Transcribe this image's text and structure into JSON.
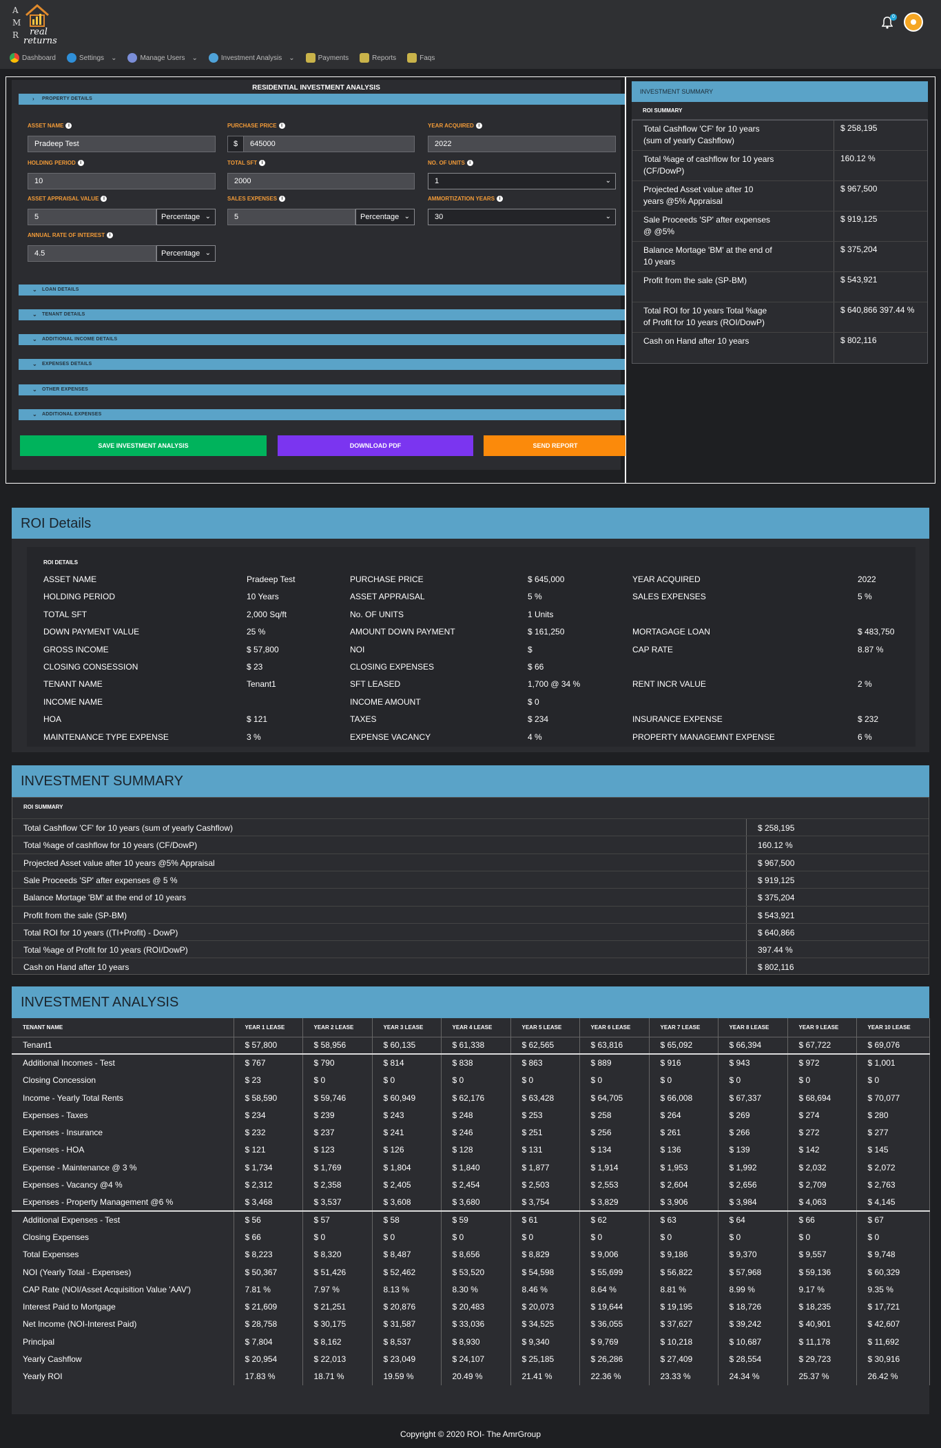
{
  "app": {
    "logo_letters": [
      "A",
      "M",
      "R"
    ],
    "logo_text": "real returns",
    "notification_count": "0"
  },
  "nav": [
    {
      "label": "Dashboard",
      "icon": "dashboard-icon",
      "has_caret": false
    },
    {
      "label": "Settings",
      "icon": "gear-icon",
      "has_caret": true
    },
    {
      "label": "Manage Users",
      "icon": "users-icon",
      "has_caret": true
    },
    {
      "label": "Investment Analysis",
      "icon": "analysis-icon",
      "has_caret": true
    },
    {
      "label": "Payments",
      "icon": "payments-icon",
      "has_caret": false
    },
    {
      "label": "Reports",
      "icon": "reports-icon",
      "has_caret": false
    },
    {
      "label": "Faqs",
      "icon": "faqs-icon",
      "has_caret": false
    }
  ],
  "form": {
    "title": "RESIDENTIAL INVESTMENT ANALYSIS",
    "property_details": "PROPERTY DETAILS",
    "asset_name_label": "ASSET NAME",
    "asset_name": "Pradeep Test",
    "purchase_price_label": "PURCHASE PRICE",
    "currency": "$",
    "purchase_price": "645000",
    "year_acquired_label": "YEAR ACQUIRED",
    "year_acquired": "2022",
    "holding_period_label": "HOLDING PERIOD",
    "holding_period": "10",
    "total_sft_label": "TOTAL SFT",
    "total_sft": "2000",
    "units_label": "NO. OF UNITS",
    "units": "1",
    "appraisal_label": "ASSET APPRAISAL VALUE",
    "appraisal": "5",
    "appraisal_type": "Percentage",
    "sales_exp_label": "SALES EXPENSES",
    "sales_exp": "5",
    "sales_exp_type": "Percentage",
    "amort_label": "AMMORTIZATION YEARS",
    "amort": "30",
    "rate_label": "ANNUAL RATE OF INTEREST",
    "rate": "4.5",
    "rate_type": "Percentage",
    "sections": [
      "LOAN DETAILS",
      "TENANT DETAILS",
      "ADDITIONAL INCOME DETAILS",
      "EXPENSES DETAILS",
      "OTHER EXPENSES",
      "ADDITIONAL EXPENSES"
    ],
    "save_btn": "SAVE INVESTMENT ANALYSIS",
    "pdf_btn": "DOWNLOAD PDF",
    "send_btn": "SEND REPORT",
    "colors": {
      "save": "#00b35c",
      "pdf": "#7b35f0",
      "send": "#fb8a0b"
    }
  },
  "side_summary": {
    "title": "INVESTMENT SUMMARY",
    "subtitle": "ROI SUMMARY",
    "rows": [
      {
        "k": "Total Cashflow 'CF' for 10 years (sum of yearly Cashflow)",
        "v": "$ 258,195"
      },
      {
        "k": "Total %age of cashflow for 10 years (CF/DowP)",
        "v": "160.12 %"
      },
      {
        "k": "Projected Asset value after 10 years @5% Appraisal",
        "v": "$ 967,500"
      },
      {
        "k": "Sale Proceeds 'SP' after expenses @ @5%",
        "v": "$ 919,125"
      },
      {
        "k": "Balance Mortage 'BM' at the end of 10 years",
        "v": "$ 375,204"
      },
      {
        "k": "Profit from the sale (SP-BM)",
        "v": "$ 543,921"
      },
      {
        "k": "Total ROI for 10 years Total %age of Profit for 10 years (ROI/DowP)",
        "v": "$ 640,866 397.44 %"
      },
      {
        "k": "Cash on Hand after 10 years",
        "v": "$ 802,116"
      }
    ]
  },
  "roi_details": {
    "title": "ROI Details",
    "caption": "ROI DETAILS",
    "rows": [
      [
        "ASSET NAME",
        "Pradeep Test",
        "PURCHASE PRICE",
        "$ 645,000",
        "YEAR ACQUIRED",
        "2022"
      ],
      [
        "HOLDING PERIOD",
        "10 Years",
        "ASSET APPRAISAL",
        "5 %",
        "SALES EXPENSES",
        "5 %"
      ],
      [
        "TOTAL SFT",
        "2,000 Sq/ft",
        "No. OF UNITS",
        "1 Units",
        "",
        ""
      ],
      [
        "DOWN PAYMENT VALUE",
        "25 %",
        "AMOUNT DOWN PAYMENT",
        "$ 161,250",
        "MORTAGAGE LOAN",
        "$ 483,750"
      ],
      [
        "GROSS INCOME",
        "$ 57,800",
        "NOI",
        "$",
        "CAP RATE",
        "8.87 %"
      ],
      [
        "CLOSING CONSESSION",
        "$ 23",
        "CLOSING EXPENSES",
        "$ 66",
        "",
        ""
      ],
      [
        "TENANT NAME",
        "Tenant1",
        "SFT LEASED",
        "1,700 @ 34 %",
        "RENT INCR VALUE",
        "2 %"
      ],
      [
        "INCOME NAME",
        "",
        "INCOME AMOUNT",
        "$ 0",
        "",
        ""
      ],
      [
        "HOA",
        "$ 121",
        "TAXES",
        "$ 234",
        "INSURANCE EXPENSE",
        "$ 232"
      ],
      [
        "MAINTENANCE TYPE EXPENSE",
        "3 %",
        "EXPENSE VACANCY",
        "4 %",
        "PROPERTY MANAGEMNT EXPENSE",
        "6 %"
      ]
    ]
  },
  "inv_summary": {
    "title": "INVESTMENT SUMMARY",
    "caption": "ROI SUMMARY",
    "rows": [
      {
        "k": "Total Cashflow 'CF' for 10 years (sum of yearly Cashflow)",
        "v": "$ 258,195"
      },
      {
        "k": "Total %age of cashflow for 10 years (CF/DowP)",
        "v": "160.12 %"
      },
      {
        "k": "Projected Asset value after 10 years @5% Appraisal",
        "v": "$ 967,500"
      },
      {
        "k": "Sale Proceeds 'SP' after expenses @ 5 %",
        "v": "$ 919,125"
      },
      {
        "k": "Balance Mortage 'BM' at the end of 10 years",
        "v": "$ 375,204"
      },
      {
        "k": "Profit from the sale (SP-BM)",
        "v": "$ 543,921"
      },
      {
        "k": "Total ROI for 10 years ((TI+Profit) - DowP)",
        "v": "$ 640,866"
      },
      {
        "k": "Total %age of Profit for 10 years (ROI/DowP)",
        "v": "397.44 %"
      },
      {
        "k": "Cash on Hand after 10 years",
        "v": "$ 802,116"
      }
    ]
  },
  "analysis": {
    "title": "INVESTMENT ANALYSIS",
    "headers": [
      "TENANT NAME",
      "YEAR 1 LEASE",
      "YEAR 2 LEASE",
      "YEAR 3 LEASE",
      "YEAR 4 LEASE",
      "YEAR 5 LEASE",
      "YEAR 6 LEASE",
      "YEAR 7 LEASE",
      "YEAR 8 LEASE",
      "YEAR 9 LEASE",
      "YEAR 10 LEASE"
    ],
    "rows": [
      [
        "Tenant1",
        "$ 57,800",
        "$ 58,956",
        "$ 60,135",
        "$ 61,338",
        "$ 62,565",
        "$ 63,816",
        "$ 65,092",
        "$ 66,394",
        "$ 67,722",
        "$ 69,076"
      ],
      [
        "Additional Incomes - Test",
        "$ 767",
        "$ 790",
        "$ 814",
        "$ 838",
        "$ 863",
        "$ 889",
        "$ 916",
        "$ 943",
        "$ 972",
        "$ 1,001"
      ],
      [
        "Closing Concession",
        "$ 23",
        "$ 0",
        "$ 0",
        "$ 0",
        "$ 0",
        "$ 0",
        "$ 0",
        "$ 0",
        "$ 0",
        "$ 0"
      ],
      [
        "Income - Yearly Total Rents",
        "$ 58,590",
        "$ 59,746",
        "$ 60,949",
        "$ 62,176",
        "$ 63,428",
        "$ 64,705",
        "$ 66,008",
        "$ 67,337",
        "$ 68,694",
        "$ 70,077"
      ],
      [
        "Expenses - Taxes",
        "$ 234",
        "$ 239",
        "$ 243",
        "$ 248",
        "$ 253",
        "$ 258",
        "$ 264",
        "$ 269",
        "$ 274",
        "$ 280"
      ],
      [
        "Expenses - Insurance",
        "$ 232",
        "$ 237",
        "$ 241",
        "$ 246",
        "$ 251",
        "$ 256",
        "$ 261",
        "$ 266",
        "$ 272",
        "$ 277"
      ],
      [
        "Expenses - HOA",
        "$ 121",
        "$ 123",
        "$ 126",
        "$ 128",
        "$ 131",
        "$ 134",
        "$ 136",
        "$ 139",
        "$ 142",
        "$ 145"
      ],
      [
        "Expense - Maintenance @ 3 %",
        "$ 1,734",
        "$ 1,769",
        "$ 1,804",
        "$ 1,840",
        "$ 1,877",
        "$ 1,914",
        "$ 1,953",
        "$ 1,992",
        "$ 2,032",
        "$ 2,072"
      ],
      [
        "Expenses - Vacancy @4 %",
        "$ 2,312",
        "$ 2,358",
        "$ 2,405",
        "$ 2,454",
        "$ 2,503",
        "$ 2,553",
        "$ 2,604",
        "$ 2,656",
        "$ 2,709",
        "$ 2,763"
      ],
      [
        "Expenses - Property Management @6 %",
        "$ 3,468",
        "$ 3,537",
        "$ 3,608",
        "$ 3,680",
        "$ 3,754",
        "$ 3,829",
        "$ 3,906",
        "$ 3,984",
        "$ 4,063",
        "$ 4,145"
      ],
      [
        "Additional Expenses - Test",
        "$ 56",
        "$ 57",
        "$ 58",
        "$ 59",
        "$ 61",
        "$ 62",
        "$ 63",
        "$ 64",
        "$ 66",
        "$ 67"
      ],
      [
        "Closing Expenses",
        "$ 66",
        "$ 0",
        "$ 0",
        "$ 0",
        "$ 0",
        "$ 0",
        "$ 0",
        "$ 0",
        "$ 0",
        "$ 0"
      ],
      [
        "Total Expenses",
        "$ 8,223",
        "$ 8,320",
        "$ 8,487",
        "$ 8,656",
        "$ 8,829",
        "$ 9,006",
        "$ 9,186",
        "$ 9,370",
        "$ 9,557",
        "$ 9,748"
      ],
      [
        "NOI (Yearly Total - Expenses)",
        "$ 50,367",
        "$ 51,426",
        "$ 52,462",
        "$ 53,520",
        "$ 54,598",
        "$ 55,699",
        "$ 56,822",
        "$ 57,968",
        "$ 59,136",
        "$ 60,329"
      ],
      [
        "CAP Rate (NOI/Asset Acquisition Value 'AAV')",
        "7.81 %",
        "7.97 %",
        "8.13 %",
        "8.30 %",
        "8.46 %",
        "8.64 %",
        "8.81 %",
        "8.99 %",
        "9.17 %",
        "9.35 %"
      ],
      [
        "Interest Paid to Mortgage",
        "$ 21,609",
        "$ 21,251",
        "$ 20,876",
        "$ 20,483",
        "$ 20,073",
        "$ 19,644",
        "$ 19,195",
        "$ 18,726",
        "$ 18,235",
        "$ 17,721"
      ],
      [
        "Net Income (NOI-Interest Paid)",
        "$ 28,758",
        "$ 30,175",
        "$ 31,587",
        "$ 33,036",
        "$ 34,525",
        "$ 36,055",
        "$ 37,627",
        "$ 39,242",
        "$ 40,901",
        "$ 42,607"
      ],
      [
        "Principal",
        "$ 7,804",
        "$ 8,162",
        "$ 8,537",
        "$ 8,930",
        "$ 9,340",
        "$ 9,769",
        "$ 10,218",
        "$ 10,687",
        "$ 11,178",
        "$ 11,692"
      ],
      [
        "Yearly Cashflow",
        "$ 20,954",
        "$ 22,013",
        "$ 23,049",
        "$ 24,107",
        "$ 25,185",
        "$ 26,286",
        "$ 27,409",
        "$ 28,554",
        "$ 29,723",
        "$ 30,916"
      ],
      [
        "Yearly ROI",
        "17.83 %",
        "18.71 %",
        "19.59 %",
        "20.49 %",
        "21.41 %",
        "22.36 %",
        "23.33 %",
        "24.34 %",
        "25.37 %",
        "26.42 %"
      ]
    ]
  },
  "footer": "Copyright © 2020 ROI- The AmrGroup"
}
